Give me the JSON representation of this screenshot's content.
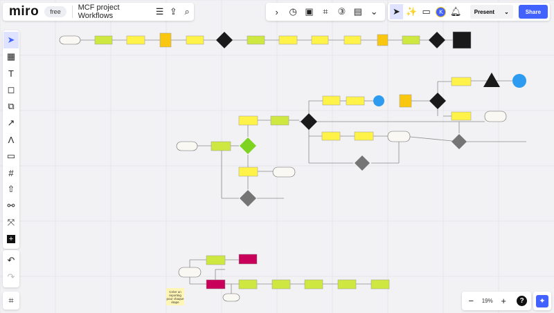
{
  "app": {
    "logo": "miro",
    "plan_badge": "free",
    "board_title": "MCF project Workflows"
  },
  "top_left_icons": [
    "menu-icon",
    "export-icon",
    "search-icon"
  ],
  "top_tools": [
    "chevron-right-icon",
    "timer-icon",
    "board-icon",
    "focus-icon",
    "number-icon",
    "notes-icon",
    "more-icon"
  ],
  "collab": {
    "cursor_tool": "cursor-icon",
    "reactions": "party-icon",
    "comments": "comment-icon",
    "avatar_initial": "K",
    "notifications": "bell-icon",
    "present_label": "Present",
    "share_label": "Share"
  },
  "left_toolbar": [
    "select",
    "templates",
    "text",
    "sticky-note",
    "shapes",
    "connection-line",
    "pen",
    "comment",
    "frame",
    "upload",
    "mind-map",
    "more-apps",
    "add"
  ],
  "history": [
    "undo",
    "redo"
  ],
  "zoom": {
    "level": "19%"
  },
  "sticky_note": "Créer un reporting pour chaque étape",
  "colors": {
    "accent": "#4262ff",
    "green": "#cee741",
    "yellow": "#fff249",
    "orange": "#fac710",
    "magenta": "#c8005a",
    "dark": "#1a1a1a",
    "gray": "#757575",
    "blue": "#2d9bf0",
    "sticky": "#fff6b6"
  }
}
